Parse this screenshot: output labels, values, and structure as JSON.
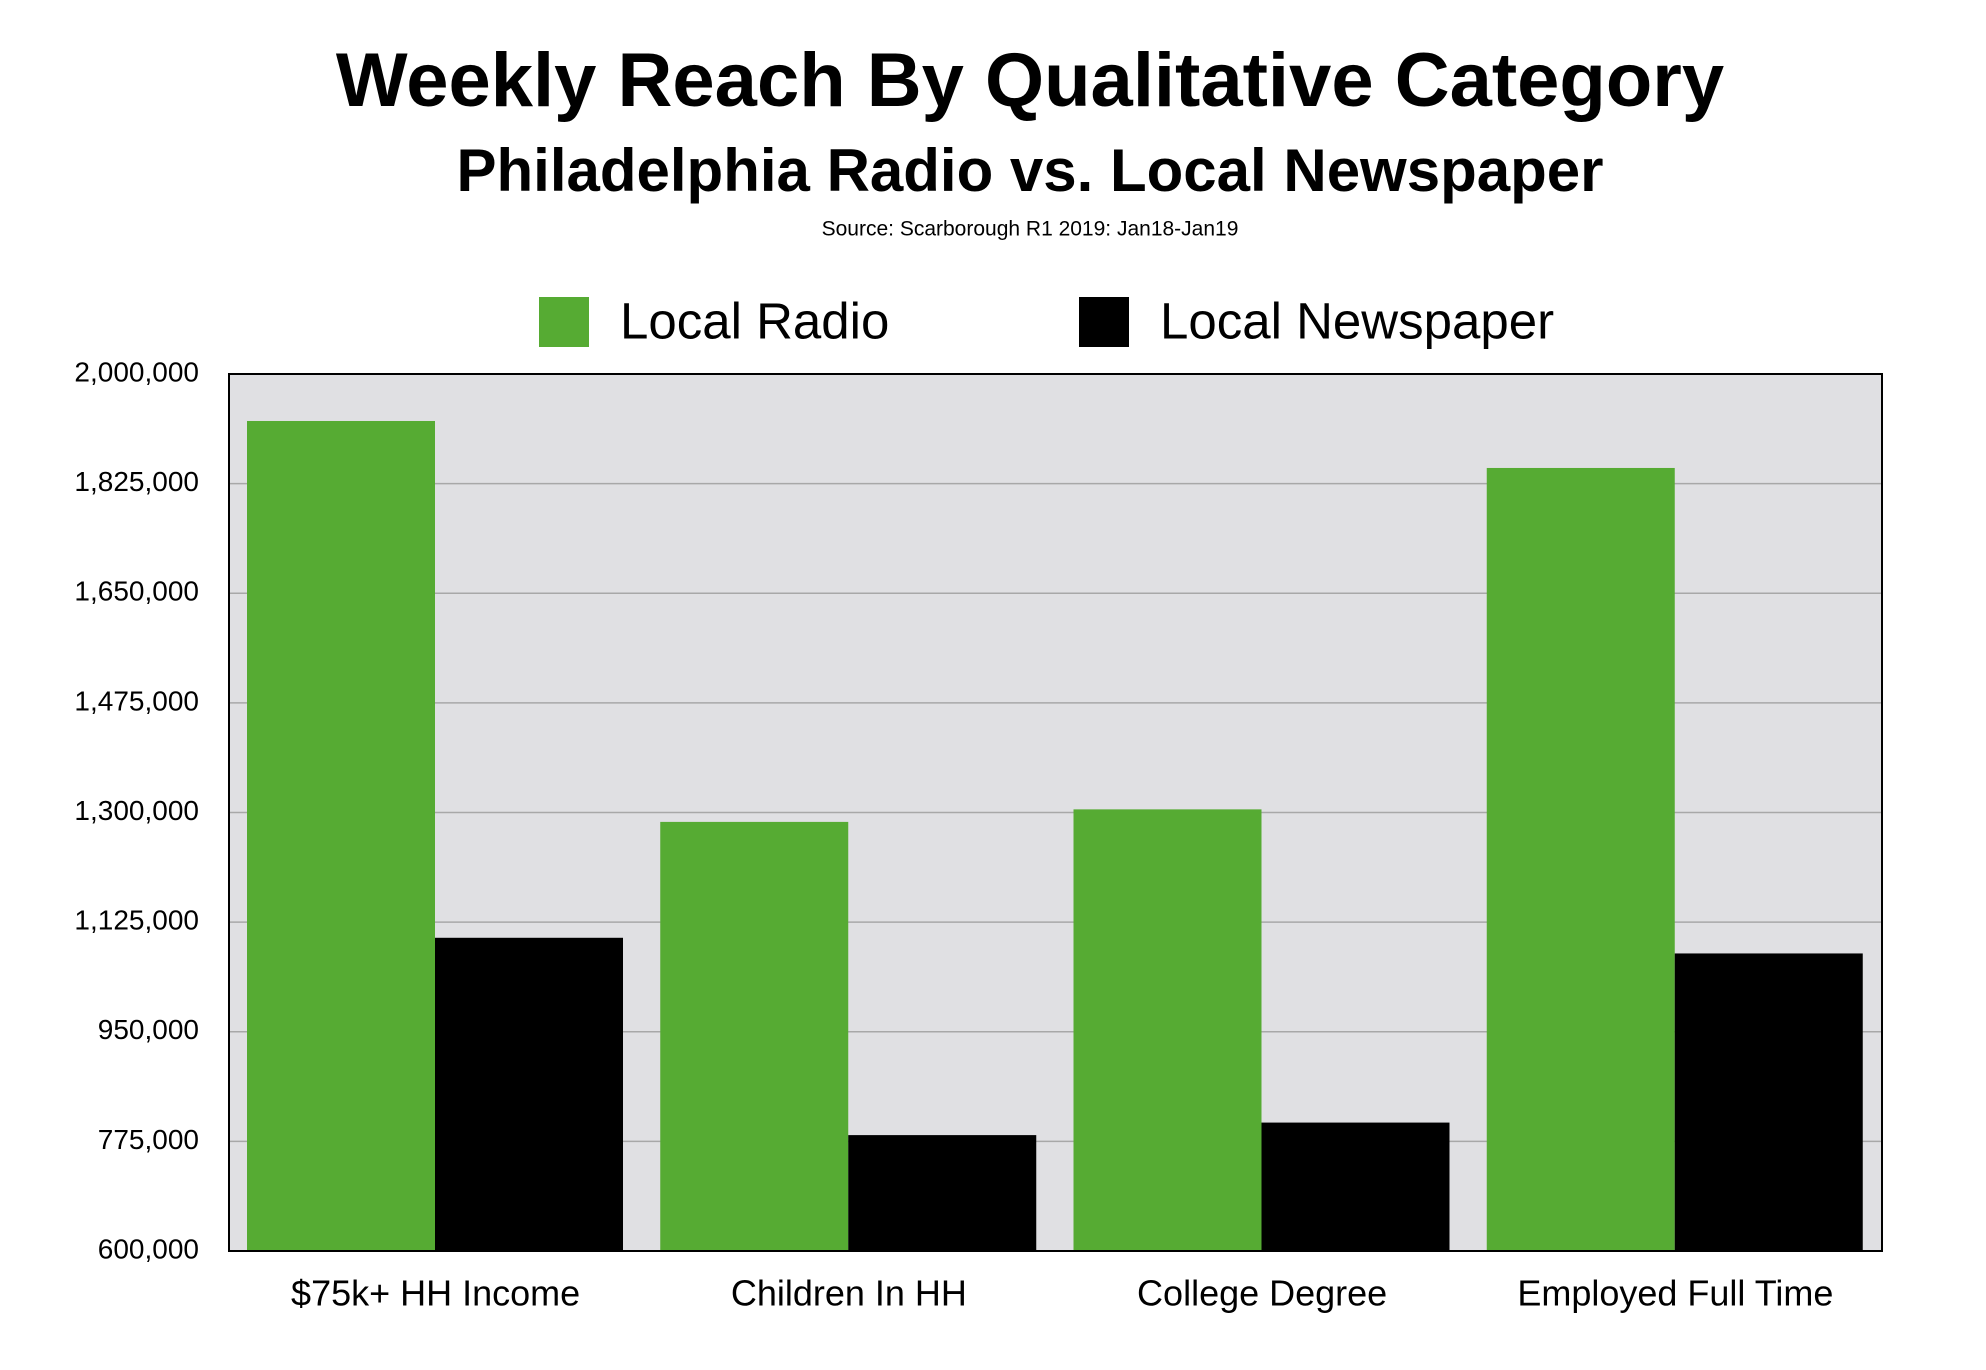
{
  "chart_data": {
    "type": "bar",
    "title": "Weekly Reach By Qualitative Category",
    "subtitle": "Philadelphia Radio vs. Local Newspaper",
    "source": "Source: Scarborough R1 2019: Jan18-Jan19",
    "categories": [
      "$75k+ HH Income",
      "Children In HH",
      "College Degree",
      "Employed Full Time"
    ],
    "series": [
      {
        "name": "Local Radio",
        "color": "#56ab33",
        "values": [
          1925000,
          1285000,
          1305000,
          1850000
        ]
      },
      {
        "name": "Local Newspaper",
        "color": "#000000",
        "values": [
          1100000,
          785000,
          805000,
          1075000
        ]
      }
    ],
    "ylim": [
      600000,
      2000000
    ],
    "yticks": [
      {
        "value": 600000,
        "label": "600,000"
      },
      {
        "value": 775000,
        "label": "775,000"
      },
      {
        "value": 950000,
        "label": "950,000"
      },
      {
        "value": 1125000,
        "label": "1,125,000"
      },
      {
        "value": 1300000,
        "label": "1,300,000"
      },
      {
        "value": 1475000,
        "label": "1,475,000"
      },
      {
        "value": 1650000,
        "label": "1,650,000"
      },
      {
        "value": 1825000,
        "label": "1,825,000"
      },
      {
        "value": 2000000,
        "label": "2,000,000"
      }
    ],
    "grid": true,
    "legend": "top"
  }
}
